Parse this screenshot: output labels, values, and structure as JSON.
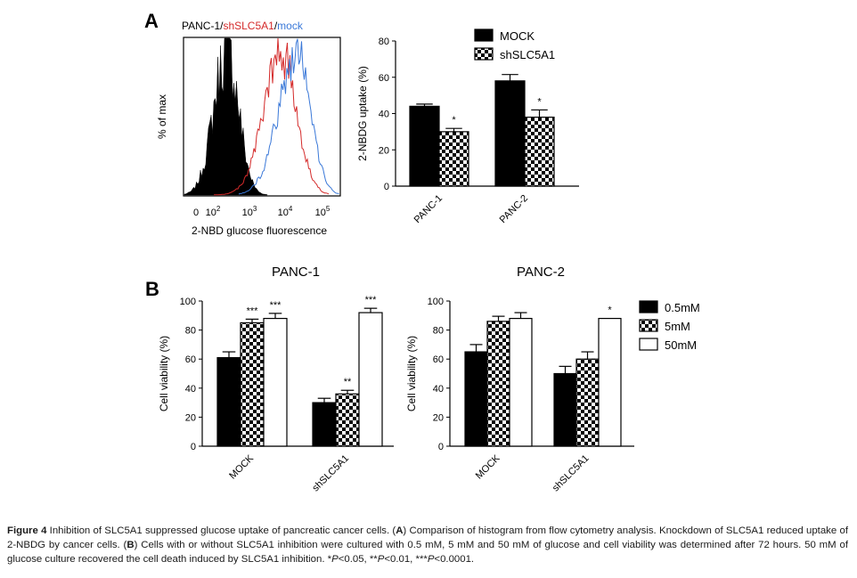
{
  "colors": {
    "black": "#000000",
    "red": "#d42a2a",
    "blue": "#3a78d8",
    "white": "#ffffff"
  },
  "panel_labels": {
    "a": "A",
    "b": "B"
  },
  "histogram": {
    "title_prefix": "PANC-1/",
    "title_red": "shSLC5A1",
    "title_sep": "/",
    "title_blue": "mock",
    "ylabel": "% of max",
    "xlabel": "2-NBD glucose fluorescence",
    "x_zero": "0",
    "x_base": "10",
    "x_exponents": [
      "2",
      "3",
      "4",
      "5"
    ]
  },
  "chart_data": [
    {
      "id": "uptake",
      "type": "bar",
      "title": "",
      "ylabel": "2-NBDG uptake (%)",
      "xlabel": "",
      "categories": [
        "PANC-1",
        "PANC-2"
      ],
      "series": [
        {
          "name": "MOCK",
          "pattern": "solid",
          "values": [
            44,
            58
          ],
          "errors": [
            1.2,
            3.5
          ],
          "sig": [
            "",
            ""
          ]
        },
        {
          "name": "shSLC5A1",
          "pattern": "checker",
          "values": [
            30,
            38
          ],
          "errors": [
            1.8,
            4
          ],
          "sig": [
            "*",
            "*"
          ]
        }
      ],
      "ylim": [
        0,
        80
      ],
      "yticks": [
        "0",
        "20",
        "40",
        "60",
        "80"
      ],
      "legend": "top-right"
    },
    {
      "id": "viability_panc1",
      "type": "bar",
      "title": "PANC-1",
      "ylabel": "Cell viability (%)",
      "xlabel": "",
      "categories": [
        "MOCK",
        "shSLC5A1"
      ],
      "series": [
        {
          "name": "0.5mM",
          "pattern": "solid",
          "values": [
            61,
            30
          ],
          "errors": [
            4,
            3
          ],
          "sig": [
            "",
            ""
          ]
        },
        {
          "name": "5mM",
          "pattern": "checker",
          "values": [
            85,
            36
          ],
          "errors": [
            2.5,
            2.5
          ],
          "sig": [
            "***",
            "**"
          ]
        },
        {
          "name": "50mM",
          "pattern": "open",
          "values": [
            88,
            92
          ],
          "errors": [
            3.5,
            3
          ],
          "sig": [
            "***",
            "***"
          ]
        }
      ],
      "ylim": [
        0,
        100
      ],
      "yticks": [
        "0",
        "20",
        "40",
        "60",
        "80",
        "100"
      ]
    },
    {
      "id": "viability_panc2",
      "type": "bar",
      "title": "PANC-2",
      "ylabel": "Cell viability (%)",
      "xlabel": "",
      "categories": [
        "MOCK",
        "shSLC5A1"
      ],
      "series": [
        {
          "name": "0.5mM",
          "pattern": "solid",
          "values": [
            65,
            50
          ],
          "errors": [
            5,
            5
          ],
          "sig": [
            "",
            ""
          ]
        },
        {
          "name": "5mM",
          "pattern": "checker",
          "values": [
            86,
            60
          ],
          "errors": [
            3.5,
            5
          ],
          "sig": [
            "",
            ""
          ]
        },
        {
          "name": "50mM",
          "pattern": "open",
          "values": [
            88,
            88
          ],
          "errors": [
            4,
            0
          ],
          "sig": [
            "",
            "*"
          ]
        }
      ],
      "ylim": [
        0,
        100
      ],
      "yticks": [
        "0",
        "20",
        "40",
        "60",
        "80",
        "100"
      ],
      "legend": "right"
    }
  ],
  "caption": {
    "figure_label": "Figure 4",
    "intro": " Inhibition of SLC5A1 suppressed glucose uptake of pancreatic cancer cells. (",
    "label_a": "A",
    "text_a": ") Comparison of histogram from flow cytometry analysis. Knockdown of SLC5A1 reduced uptake of 2-NBDG by cancer cells. (",
    "label_b": "B",
    "text_b": ") Cells with or without SLC5A1 inhibition were cultured with 0.5 mM, 5 mM and 50 mM of glucose and cell viability was determined after 72 hours. 50 mM of glucose culture recovered the cell death induced by SLC5A1 inhibition. *",
    "p_1": "P",
    "thr_1": "<0.05, **",
    "p_2": "P",
    "thr_2": "<0.01, ***",
    "p_3": "P",
    "thr_3": "<0.0001."
  }
}
